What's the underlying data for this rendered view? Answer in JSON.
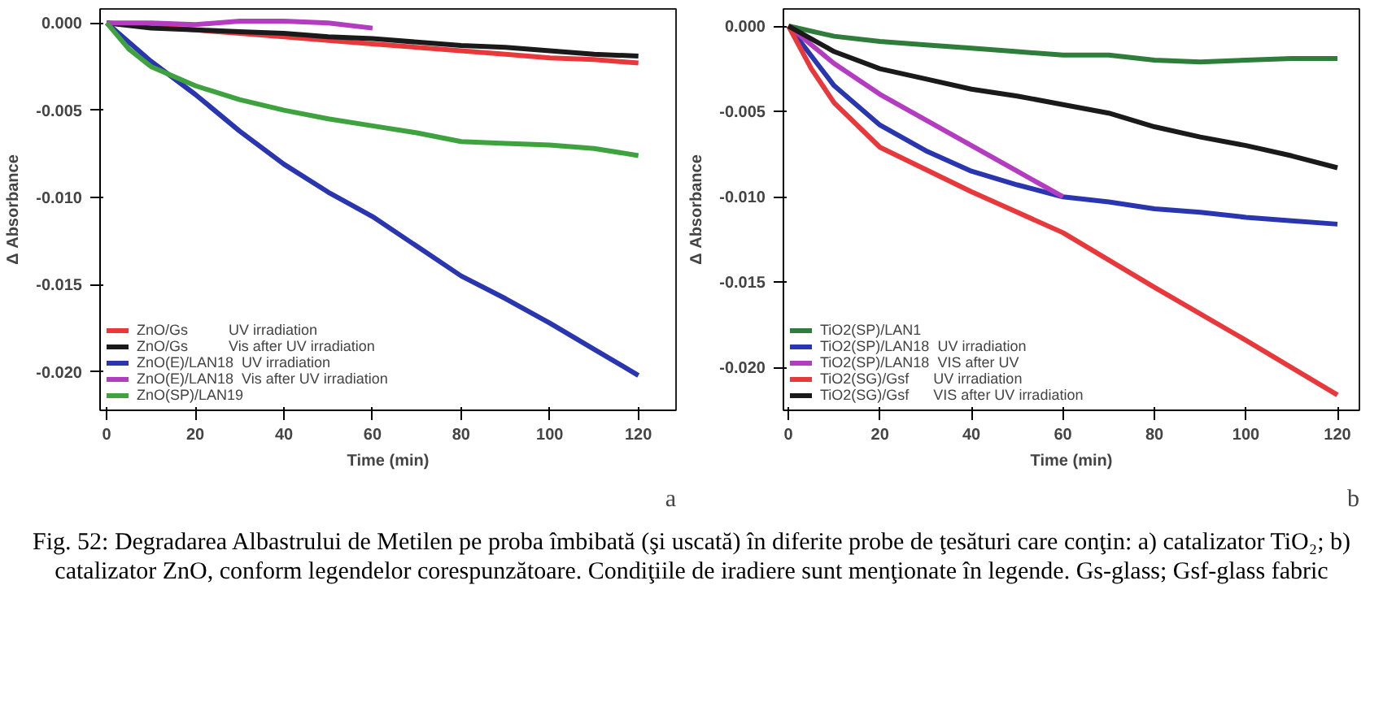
{
  "chart_data": [
    {
      "type": "line",
      "xlabel": "Time (min)",
      "ylabel": "Δ Absorbance",
      "annotations": [
        "a",
        "Fig. 52: Degradarea Albastrului de Metilen pe proba îmbibată (şi uscată) în diferite probe de ţesături care conţin: a) catalizator TiO₂; b) catalizator ZnO, conform legendelor corespunzătoare. Condiţiile de iradiere sunt menţionate în legende. Gs-glass; Gsf-glass fabric"
      ],
      "xlim": [
        -1.5,
        128.5
      ],
      "ylim": [
        -0.0222,
        0.0008
      ],
      "xticks": [
        0,
        20,
        40,
        60,
        80,
        100,
        120
      ],
      "yticks": [
        {
          "value": 0,
          "label": "0.000"
        },
        {
          "value": -0.005,
          "label": "-0.005"
        },
        {
          "value": -0.01,
          "label": "-0.010"
        },
        {
          "value": -0.015,
          "label": "-0.015"
        },
        {
          "value": -0.02,
          "label": "-0.020"
        }
      ],
      "grid": false,
      "legend": "bottom left",
      "x": [
        0,
        10,
        20,
        30,
        40,
        50,
        60,
        70,
        80,
        90,
        100,
        110,
        120
      ],
      "series": [
        {
          "name": "ZnO/Gs          UV irradiation",
          "color": "#e8383b",
          "values": [
            0,
            -0.0002,
            -0.0004,
            -0.0006,
            -0.0008,
            -0.001,
            -0.0012,
            -0.0014,
            -0.0016,
            -0.0018,
            -0.002,
            -0.0021,
            -0.0023
          ]
        },
        {
          "name": "ZnO/Gs          Vis after UV irradiation",
          "color": "#1a1a1a",
          "values": [
            0,
            -0.0003,
            -0.0004,
            -0.0005,
            -0.0006,
            -0.0008,
            -0.0009,
            -0.0011,
            -0.0013,
            -0.0014,
            -0.0016,
            -0.0018,
            -0.0019
          ]
        },
        {
          "name": "ZnO(E)/LAN18  UV irradiation",
          "color": "#2a35b0",
          "values": [
            0,
            -0.0022,
            -0.0041,
            -0.0062,
            -0.0081,
            -0.0097,
            -0.0111,
            -0.0128,
            -0.0145,
            -0.0158,
            -0.0172,
            -0.0187,
            -0.0202
          ]
        },
        {
          "name": "ZnO(E)/LAN18  Vis after UV irradiation",
          "color": "#b43cc0",
          "x": [
            0,
            10,
            20,
            30,
            40,
            50,
            60
          ],
          "values": [
            0,
            0,
            -0.0001,
            0.0001,
            0.0001,
            0,
            -0.0003
          ]
        },
        {
          "name": "ZnO(SP)/LAN19",
          "color": "#3ea33e",
          "x": [
            0,
            5,
            10,
            20,
            30,
            40,
            50,
            60,
            70,
            80,
            90,
            100,
            110,
            120
          ],
          "values": [
            0,
            -0.0015,
            -0.0025,
            -0.0036,
            -0.0044,
            -0.005,
            -0.0055,
            -0.0059,
            -0.0063,
            -0.0068,
            -0.0069,
            -0.007,
            -0.0072,
            -0.0076
          ]
        }
      ]
    },
    {
      "type": "line",
      "xlabel": "Time (min)",
      "ylabel": "Δ Absorbance",
      "annotations": [
        "b"
      ],
      "xlim": [
        -1.1,
        124.8
      ],
      "ylim": [
        -0.0225,
        0.001
      ],
      "xticks": [
        0,
        20,
        40,
        60,
        80,
        100,
        120
      ],
      "yticks": [
        {
          "value": 0,
          "label": "0.000"
        },
        {
          "value": -0.005,
          "label": "-0.005"
        },
        {
          "value": -0.01,
          "label": "-0.010"
        },
        {
          "value": -0.015,
          "label": "-0.015"
        },
        {
          "value": -0.02,
          "label": "-0.020"
        }
      ],
      "grid": false,
      "legend": "bottom left",
      "x": [
        0,
        10,
        20,
        30,
        40,
        50,
        60,
        70,
        80,
        90,
        100,
        110,
        120
      ],
      "series": [
        {
          "name": "TiO2(SP)/LAN1",
          "color": "#2e7d3a",
          "values": [
            0,
            -0.0006,
            -0.0009,
            -0.0011,
            -0.0013,
            -0.0015,
            -0.0017,
            -0.0017,
            -0.002,
            -0.0021,
            -0.002,
            -0.0019,
            -0.0019
          ]
        },
        {
          "name": "TiO2(SP)/LAN18  UV irradiation",
          "color": "#2a35b0",
          "values": [
            0,
            -0.0035,
            -0.0058,
            -0.0073,
            -0.0085,
            -0.0093,
            -0.01,
            -0.0103,
            -0.0107,
            -0.0109,
            -0.0112,
            -0.0114,
            -0.0116
          ]
        },
        {
          "name": "TiO2(SP)/LAN18  VIS after UV",
          "color": "#b43cc0",
          "x": [
            0,
            10,
            20,
            30,
            40,
            50,
            60
          ],
          "values": [
            0,
            -0.0022,
            -0.004,
            -0.0055,
            -0.007,
            -0.0085,
            -0.01
          ]
        },
        {
          "name": "TiO2(SG)/Gsf      UV irradiation",
          "color": "#e8383b",
          "x": [
            0,
            5,
            10,
            20,
            40,
            60,
            80,
            100,
            120
          ],
          "values": [
            0,
            -0.0025,
            -0.0045,
            -0.0071,
            -0.0097,
            -0.0121,
            -0.0153,
            -0.0184,
            -0.0216
          ]
        },
        {
          "name": "TiO2(SG)/Gsf      VIS after UV irradiation",
          "color": "#1a1a1a",
          "values": [
            0,
            -0.0015,
            -0.0025,
            -0.0031,
            -0.0037,
            -0.0041,
            -0.0046,
            -0.0051,
            -0.0059,
            -0.0065,
            -0.007,
            -0.0076,
            -0.0083
          ]
        }
      ]
    }
  ]
}
